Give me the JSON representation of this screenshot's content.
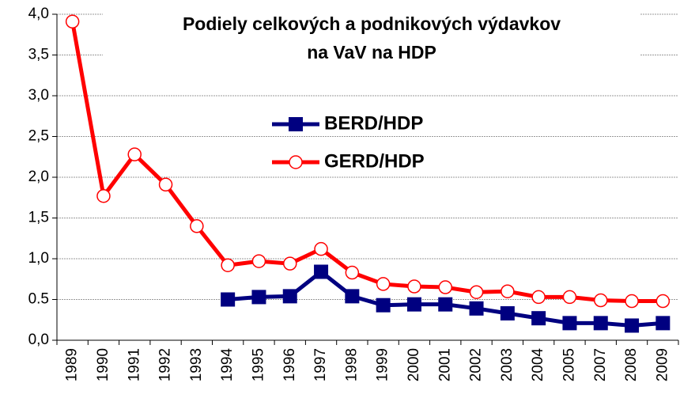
{
  "chart_data": {
    "type": "line",
    "title": [
      "Podiely celkových a podnikových  výdavkov",
      "na VaV na HDP"
    ],
    "categories": [
      "1989",
      "1990",
      "1991",
      "1992",
      "1993",
      "1994",
      "1995",
      "1996",
      "1997",
      "1998",
      "1999",
      "2000",
      "2001",
      "2002",
      "2003",
      "2004",
      "2005",
      "2007",
      "2008",
      "2009"
    ],
    "series": [
      {
        "name": "BERD/HDP",
        "color": "#000080",
        "marker": "square",
        "values": [
          null,
          null,
          null,
          null,
          null,
          0.5,
          0.53,
          0.54,
          0.84,
          0.54,
          0.43,
          0.44,
          0.44,
          0.39,
          0.33,
          0.27,
          0.21,
          0.21,
          0.18,
          0.21
        ]
      },
      {
        "name": "GERD/HDP",
        "color": "#ff0000",
        "marker": "circle",
        "values": [
          3.91,
          1.77,
          2.28,
          1.91,
          1.4,
          0.92,
          0.97,
          0.94,
          1.12,
          0.83,
          0.69,
          0.66,
          0.65,
          0.59,
          0.6,
          0.53,
          0.53,
          0.49,
          0.48,
          0.48
        ]
      }
    ],
    "ylim": [
      0,
      4
    ],
    "yticks": [
      {
        "value": 0,
        "label": "0,0"
      },
      0.5,
      {
        "value": 1,
        "label": "1,0"
      },
      {
        "value": 1.5,
        "label": "1,5"
      },
      {
        "value": 2,
        "label": "2,0"
      },
      {
        "value": 2.5,
        "label": "2,5"
      },
      {
        "value": 3,
        "label": "3,0"
      },
      {
        "value": 3.5,
        "label": "3,5"
      },
      {
        "value": 4,
        "label": "4,0"
      }
    ],
    "grid": true
  }
}
